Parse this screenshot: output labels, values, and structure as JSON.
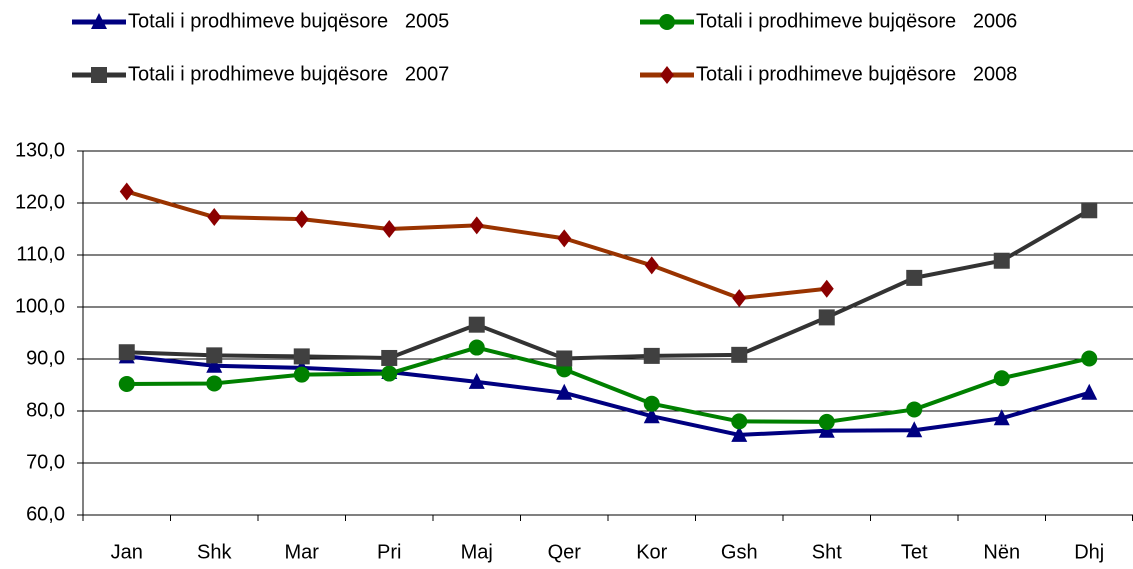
{
  "chart_data": {
    "type": "line",
    "categories": [
      "Jan",
      "Shk",
      "Mar",
      "Pri",
      "Maj",
      "Qer",
      "Kor",
      "Gsh",
      "Sht",
      "Tet",
      "Nën",
      "Dhj"
    ],
    "series": [
      {
        "name": "Totali i prodhimeve bujqësore   2005",
        "color": "#000080",
        "marker": "triangle",
        "values": [
          90.5,
          88.7,
          88.3,
          87.5,
          85.6,
          83.5,
          79.0,
          75.4,
          76.2,
          76.3,
          78.6,
          83.5
        ]
      },
      {
        "name": "Totali i prodhimeve bujqësore   2006",
        "color": "#008000",
        "marker": "circle",
        "values": [
          85.2,
          85.3,
          87.0,
          87.2,
          92.2,
          88.0,
          81.4,
          78.0,
          77.9,
          80.3,
          86.3,
          90.1
        ]
      },
      {
        "name": "Totali i prodhimeve bujqësore   2007",
        "color": "#333333",
        "marker": "square",
        "values": [
          91.3,
          90.7,
          90.5,
          90.2,
          96.6,
          90.1,
          90.6,
          90.8,
          98.0,
          105.6,
          108.9,
          118.6
        ]
      },
      {
        "name": "Totali i prodhimeve bujqësore   2008",
        "color": "#993300",
        "marker": "diamond",
        "values": [
          122.2,
          117.3,
          116.9,
          115.0,
          115.7,
          113.2,
          108.0,
          101.7,
          103.5,
          null,
          null,
          null
        ]
      }
    ],
    "ylim": [
      60,
      130
    ],
    "yticks": [
      {
        "value": 60,
        "label": "60,0"
      },
      {
        "value": 70,
        "label": "70,0"
      },
      {
        "value": 80,
        "label": "80,0"
      },
      {
        "value": 90,
        "label": "90,0"
      },
      {
        "value": 100,
        "label": "100,0"
      },
      {
        "value": 110,
        "label": "110,0"
      },
      {
        "value": 120,
        "label": "120,0"
      },
      {
        "value": 130,
        "label": "130,0"
      }
    ],
    "grid": true,
    "legend": "top"
  }
}
